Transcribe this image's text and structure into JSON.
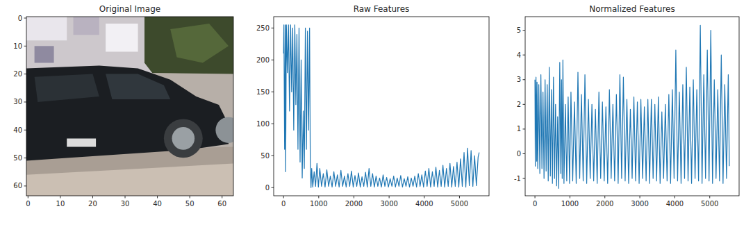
{
  "chart_data": [
    {
      "type": "image",
      "title": "Original Image",
      "xlim": [
        -0.5,
        63.5
      ],
      "ylim": [
        63.5,
        -0.5
      ],
      "xticks": [
        0,
        10,
        20,
        30,
        40,
        50,
        60
      ],
      "yticks": [
        0,
        10,
        20,
        30,
        40,
        50,
        60
      ]
    },
    {
      "type": "line",
      "title": "Raw Features",
      "color": "#1f77b4",
      "xlim": [
        -280,
        5840
      ],
      "ylim": [
        -12.75,
        267.75
      ],
      "xticks": [
        0,
        1000,
        2000,
        3000,
        4000,
        5000
      ],
      "yticks": [
        0,
        50,
        100,
        150,
        200,
        250
      ],
      "x": [
        0,
        10,
        30,
        50,
        60,
        80,
        110,
        140,
        170,
        200,
        230,
        260,
        290,
        320,
        350,
        380,
        410,
        440,
        470,
        500,
        530,
        560,
        590,
        620,
        650,
        680,
        710,
        740,
        760,
        780,
        800,
        830,
        870,
        910,
        950,
        990,
        1030,
        1080,
        1130,
        1180,
        1230,
        1280,
        1330,
        1380,
        1430,
        1480,
        1530,
        1580,
        1630,
        1680,
        1730,
        1780,
        1830,
        1880,
        1930,
        1980,
        2030,
        2080,
        2130,
        2180,
        2230,
        2280,
        2330,
        2380,
        2430,
        2480,
        2530,
        2580,
        2630,
        2680,
        2730,
        2780,
        2830,
        2880,
        2930,
        2980,
        3030,
        3080,
        3130,
        3180,
        3230,
        3280,
        3330,
        3380,
        3430,
        3480,
        3530,
        3580,
        3630,
        3680,
        3730,
        3780,
        3830,
        3880,
        3930,
        3980,
        4030,
        4080,
        4130,
        4180,
        4230,
        4280,
        4330,
        4380,
        4430,
        4480,
        4530,
        4580,
        4630,
        4680,
        4730,
        4780,
        4830,
        4880,
        4930,
        4980,
        5030,
        5080,
        5130,
        5180,
        5230,
        5280,
        5330,
        5380,
        5430,
        5480,
        5530,
        5560
      ],
      "values": [
        210,
        255,
        60,
        255,
        25,
        255,
        180,
        255,
        120,
        255,
        150,
        250,
        90,
        255,
        130,
        240,
        60,
        250,
        40,
        200,
        15,
        120,
        30,
        250,
        60,
        245,
        90,
        250,
        40,
        0,
        30,
        1,
        25,
        2,
        38,
        1,
        30,
        2,
        22,
        1,
        28,
        2,
        18,
        1,
        25,
        2,
        20,
        1,
        27,
        2,
        18,
        1,
        22,
        2,
        26,
        1,
        19,
        2,
        23,
        1,
        17,
        2,
        24,
        1,
        30,
        2,
        22,
        1,
        18,
        2,
        15,
        1,
        20,
        2,
        16,
        1,
        14,
        2,
        18,
        1,
        15,
        2,
        19,
        1,
        14,
        2,
        17,
        1,
        15,
        2,
        18,
        1,
        22,
        2,
        20,
        1,
        26,
        2,
        30,
        1,
        25,
        2,
        32,
        1,
        27,
        2,
        35,
        1,
        30,
        2,
        38,
        1,
        33,
        2,
        40,
        1,
        45,
        2,
        55,
        1,
        62,
        3,
        58,
        2,
        50,
        3,
        48,
        55
      ]
    },
    {
      "type": "line",
      "title": "Normalized Features",
      "color": "#1f77b4",
      "xlim": [
        -280,
        5840
      ],
      "ylim": [
        -1.7,
        5.55
      ],
      "xticks": [
        0,
        1000,
        2000,
        3000,
        4000,
        5000
      ],
      "yticks": [
        -1,
        0,
        1,
        2,
        3,
        4,
        5
      ],
      "x": [
        0,
        10,
        30,
        50,
        60,
        80,
        110,
        140,
        170,
        200,
        230,
        260,
        290,
        320,
        350,
        380,
        410,
        440,
        470,
        500,
        530,
        560,
        590,
        620,
        650,
        680,
        710,
        740,
        760,
        780,
        800,
        830,
        870,
        910,
        950,
        990,
        1030,
        1080,
        1130,
        1180,
        1230,
        1280,
        1330,
        1380,
        1430,
        1480,
        1530,
        1580,
        1630,
        1680,
        1730,
        1780,
        1830,
        1880,
        1930,
        1980,
        2030,
        2080,
        2130,
        2180,
        2230,
        2280,
        2330,
        2380,
        2430,
        2480,
        2530,
        2580,
        2630,
        2680,
        2730,
        2780,
        2830,
        2880,
        2930,
        2980,
        3030,
        3080,
        3130,
        3180,
        3230,
        3280,
        3330,
        3380,
        3430,
        3480,
        3530,
        3580,
        3630,
        3680,
        3730,
        3780,
        3830,
        3880,
        3930,
        3980,
        4030,
        4080,
        4130,
        4180,
        4230,
        4280,
        4330,
        4380,
        4430,
        4480,
        4530,
        4580,
        4630,
        4680,
        4730,
        4780,
        4830,
        4880,
        4930,
        4980,
        5030,
        5080,
        5130,
        5180,
        5230,
        5280,
        5330,
        5380,
        5430,
        5480,
        5530,
        5560
      ],
      "values": [
        3.0,
        -0.5,
        3.1,
        -0.3,
        2.9,
        -0.6,
        2.8,
        -0.8,
        3.2,
        -0.6,
        2.5,
        -1.0,
        3.0,
        -0.7,
        2.8,
        -1.1,
        3.5,
        -0.9,
        2.6,
        -1.2,
        3.1,
        -1.0,
        2.0,
        -1.3,
        1.5,
        -1.4,
        3.7,
        -0.8,
        3.0,
        -1.0,
        3.8,
        -1.2,
        2.0,
        -1.1,
        2.3,
        -1.2,
        2.5,
        -1.1,
        2.1,
        -1.2,
        3.3,
        -1.0,
        2.4,
        -1.1,
        3.2,
        -1.2,
        2.2,
        -1.0,
        2.0,
        -1.1,
        1.8,
        -1.2,
        2.5,
        -1.0,
        2.1,
        -1.1,
        1.9,
        -1.2,
        2.6,
        -1.0,
        2.0,
        -1.1,
        2.4,
        -1.2,
        3.2,
        -1.0,
        3.1,
        -1.1,
        2.2,
        -1.2,
        1.8,
        -1.0,
        2.3,
        -1.1,
        2.1,
        -1.2,
        2.2,
        -1.0,
        1.9,
        -1.1,
        2.2,
        -1.2,
        2.2,
        -1.0,
        2.0,
        -1.1,
        2.3,
        -1.2,
        1.7,
        -1.0,
        2.0,
        -1.1,
        2.4,
        -1.2,
        2.6,
        -1.0,
        4.2,
        -1.1,
        2.5,
        -1.2,
        2.8,
        -1.0,
        3.5,
        -1.1,
        2.7,
        -1.2,
        3.0,
        -1.0,
        2.6,
        -1.1,
        5.2,
        -1.2,
        3.2,
        -1.0,
        4.2,
        -1.1,
        5.0,
        -1.2,
        3.0,
        -1.0,
        2.6,
        -1.1,
        4.0,
        -1.2,
        2.8,
        -1.0,
        3.2,
        -0.5
      ]
    }
  ]
}
